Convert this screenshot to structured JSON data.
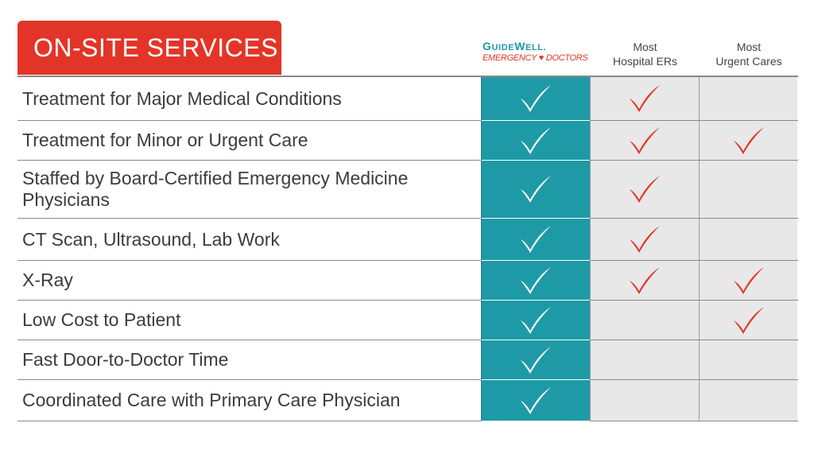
{
  "title": "ON-SITE SERVICES",
  "brand": {
    "name_first": "G",
    "name_rest": "UIDE",
    "name_second": "W",
    "name_rest2": "ELL",
    "name_dot": ".",
    "subtitle": "EMERGENCY ♥ DOCTORS"
  },
  "columns": {
    "hospital_line1": "Most",
    "hospital_line2": "Hospital ERs",
    "urgent_line1": "Most",
    "urgent_line2": "Urgent Cares"
  },
  "colors": {
    "accent_red": "#e33527",
    "teal": "#1e9aa6",
    "gray_cell": "#e8e8e8"
  },
  "rows": [
    {
      "label": "Treatment for Major Medical Conditions",
      "guidewell": true,
      "hospital": true,
      "urgent": false
    },
    {
      "label": "Treatment for Minor or Urgent Care",
      "guidewell": true,
      "hospital": true,
      "urgent": true
    },
    {
      "label": "Staffed by Board-Certified Emergency Medicine Physicians",
      "guidewell": true,
      "hospital": true,
      "urgent": false
    },
    {
      "label": "CT Scan, Ultrasound, Lab Work",
      "guidewell": true,
      "hospital": true,
      "urgent": false
    },
    {
      "label": "X-Ray",
      "guidewell": true,
      "hospital": true,
      "urgent": true
    },
    {
      "label": "Low Cost to Patient",
      "guidewell": true,
      "hospital": false,
      "urgent": true
    },
    {
      "label": "Fast Door-to-Doctor Time",
      "guidewell": true,
      "hospital": false,
      "urgent": false
    },
    {
      "label": "Coordinated Care with Primary Care Physician",
      "guidewell": true,
      "hospital": false,
      "urgent": false
    }
  ]
}
